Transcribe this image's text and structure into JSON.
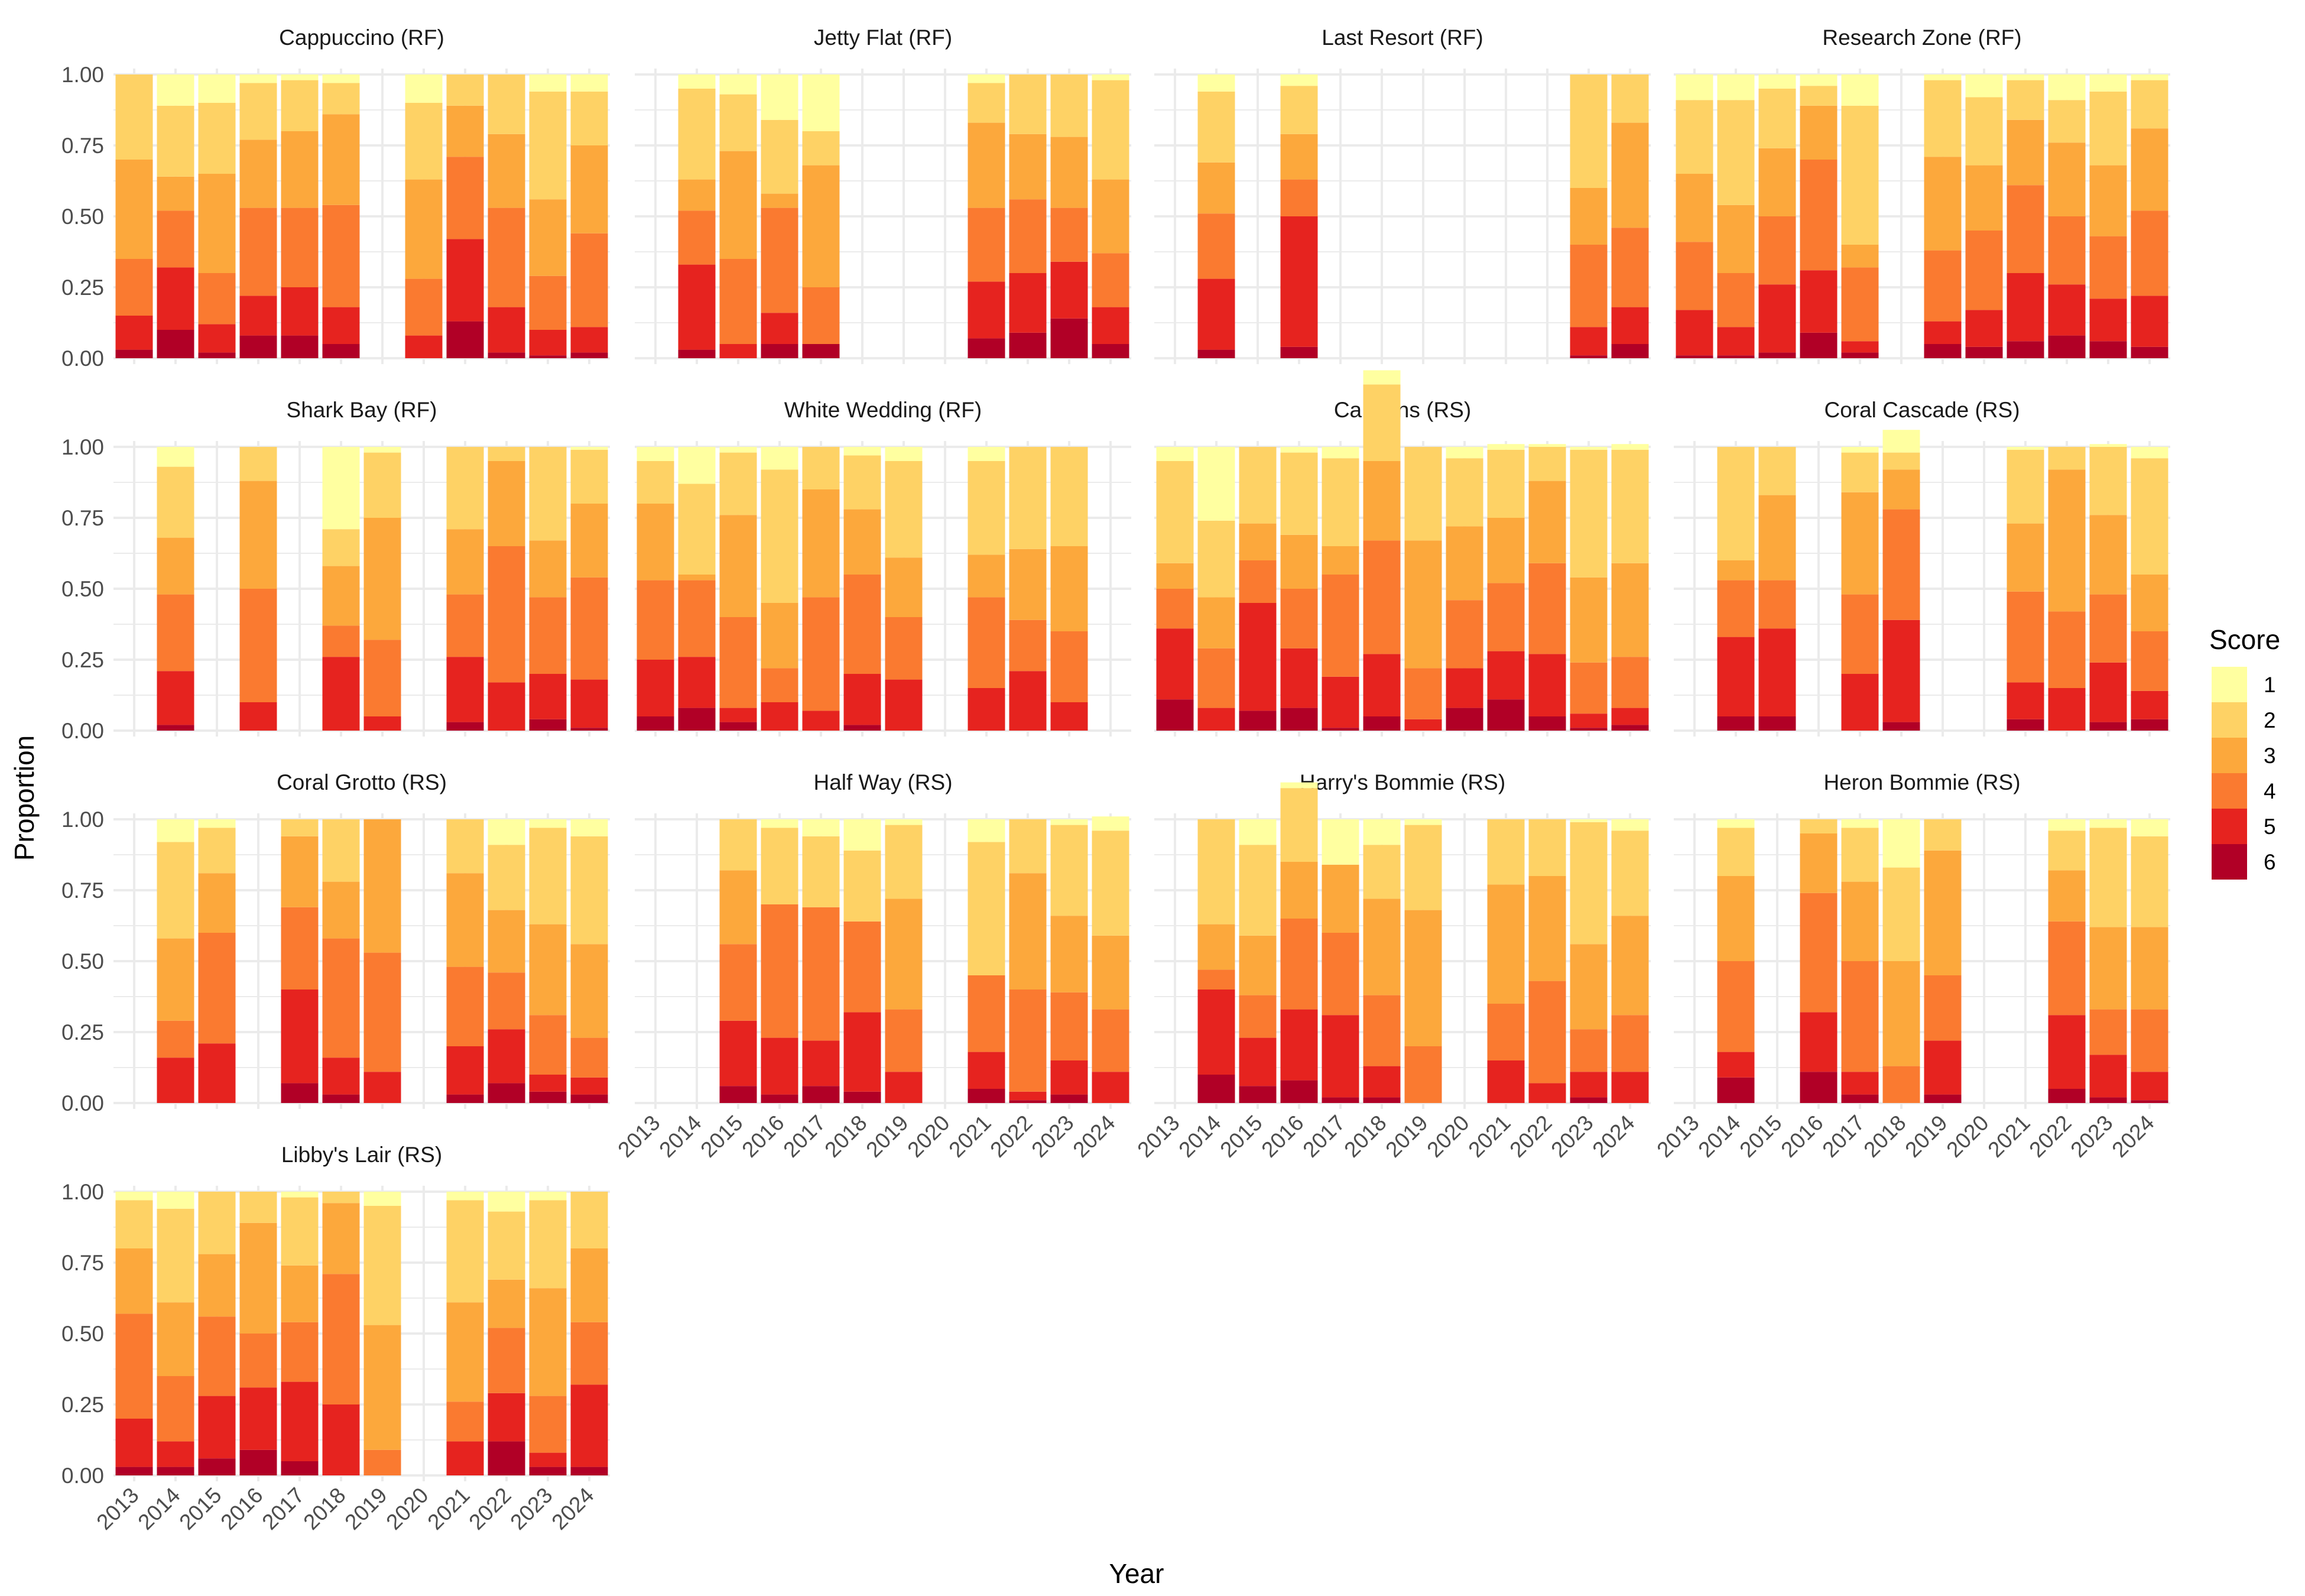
{
  "colors": {
    "1": "#FFFFA0",
    "2": "#FED265",
    "3": "#FCA83C",
    "4": "#FA7A30",
    "5": "#E6231F",
    "6": "#B10026",
    "grid": "#EBEBEB"
  },
  "chart_data": {
    "type": "bar",
    "stacked": true,
    "facet_wrap": true,
    "xlabel": "Year",
    "ylabel": "Proportion",
    "ylim": [
      0,
      1
    ],
    "yticks": [
      "0.00",
      "0.25",
      "0.50",
      "0.75",
      "1.00"
    ],
    "years": [
      "2013",
      "2014",
      "2015",
      "2016",
      "2017",
      "2018",
      "2019",
      "2020",
      "2021",
      "2022",
      "2023",
      "2024"
    ],
    "legend": {
      "title": "Score",
      "position": "right",
      "labels": [
        "1",
        "2",
        "3",
        "4",
        "5",
        "6"
      ]
    },
    "note": "Each bar: proportion of each Score stacked with 6 at the bottom, 1 at the top; null = no bar.",
    "facets": [
      {
        "title": "Cappuccino (RF)",
        "bars": [
          [
            0,
            0.3,
            0.35,
            0.2,
            0.12,
            0.03
          ],
          [
            0.11,
            0.25,
            0.12,
            0.2,
            0.22,
            0.1
          ],
          [
            0.1,
            0.25,
            0.35,
            0.18,
            0.1,
            0.02
          ],
          [
            0.03,
            0.2,
            0.24,
            0.31,
            0.14,
            0.08
          ],
          [
            0.02,
            0.18,
            0.27,
            0.28,
            0.17,
            0.08
          ],
          [
            0.03,
            0.11,
            0.32,
            0.36,
            0.13,
            0.05
          ],
          null,
          [
            0.1,
            0.27,
            0.35,
            0.2,
            0.08,
            0
          ],
          [
            0,
            0.11,
            0.18,
            0.29,
            0.29,
            0.13
          ],
          [
            0,
            0.21,
            0.26,
            0.35,
            0.16,
            0.02
          ],
          [
            0.06,
            0.38,
            0.27,
            0.19,
            0.09,
            0.01
          ],
          [
            0.06,
            0.19,
            0.31,
            0.33,
            0.09,
            0.02
          ]
        ]
      },
      {
        "title": "Jetty Flat (RF)",
        "bars": [
          null,
          [
            0.05,
            0.32,
            0.11,
            0.19,
            0.3,
            0.03
          ],
          [
            0.07,
            0.2,
            0.38,
            0.3,
            0.05,
            0
          ],
          [
            0.16,
            0.26,
            0.05,
            0.37,
            0.11,
            0.05
          ],
          [
            0.2,
            0.12,
            0.43,
            0.2,
            0,
            0.05
          ],
          null,
          null,
          null,
          [
            0.03,
            0.14,
            0.3,
            0.26,
            0.2,
            0.07
          ],
          [
            0,
            0.21,
            0.23,
            0.26,
            0.21,
            0.09
          ],
          [
            0,
            0.22,
            0.25,
            0.19,
            0.2,
            0.14
          ],
          [
            0.02,
            0.35,
            0.26,
            0.19,
            0.13,
            0.05
          ]
        ]
      },
      {
        "title": "Last Resort (RF)",
        "bars": [
          null,
          [
            0.06,
            0.25,
            0.18,
            0.23,
            0.25,
            0.03
          ],
          null,
          [
            0.04,
            0.17,
            0.16,
            0.13,
            0.46,
            0.04
          ],
          null,
          null,
          null,
          null,
          null,
          null,
          [
            0,
            0.4,
            0.2,
            0.29,
            0.1,
            0.01
          ],
          [
            0,
            0.17,
            0.37,
            0.28,
            0.13,
            0.05
          ]
        ]
      },
      {
        "title": "Research Zone (RF)",
        "bars": [
          [
            0.09,
            0.26,
            0.24,
            0.24,
            0.16,
            0.01
          ],
          [
            0.09,
            0.37,
            0.24,
            0.19,
            0.1,
            0.01
          ],
          [
            0.05,
            0.21,
            0.24,
            0.24,
            0.24,
            0.02
          ],
          [
            0.04,
            0.07,
            0.19,
            0.39,
            0.22,
            0.09
          ],
          [
            0.11,
            0.49,
            0.08,
            0.26,
            0.04,
            0.02
          ],
          null,
          [
            0.02,
            0.27,
            0.33,
            0.25,
            0.08,
            0.05
          ],
          [
            0.08,
            0.24,
            0.23,
            0.28,
            0.13,
            0.04
          ],
          [
            0.02,
            0.14,
            0.23,
            0.31,
            0.24,
            0.06
          ],
          [
            0.09,
            0.15,
            0.26,
            0.24,
            0.18,
            0.08
          ],
          [
            0.06,
            0.26,
            0.25,
            0.22,
            0.15,
            0.06
          ],
          [
            0.02,
            0.17,
            0.29,
            0.3,
            0.18,
            0.04
          ]
        ]
      },
      {
        "title": "Shark Bay (RF)",
        "bars": [
          null,
          [
            0.07,
            0.25,
            0.2,
            0.27,
            0.19,
            0.02
          ],
          null,
          [
            0,
            0.12,
            0.38,
            0.4,
            0.1,
            0
          ],
          null,
          [
            0.29,
            0.13,
            0.21,
            0.11,
            0.26,
            0
          ],
          [
            0.02,
            0.23,
            0.43,
            0.27,
            0.05,
            0
          ],
          null,
          [
            0,
            0.29,
            0.23,
            0.22,
            0.23,
            0.03
          ],
          [
            0,
            0.05,
            0.3,
            0.48,
            0.17,
            0
          ],
          [
            0,
            0.33,
            0.2,
            0.27,
            0.16,
            0.04
          ],
          [
            0.01,
            0.19,
            0.26,
            0.36,
            0.17,
            0.01
          ]
        ]
      },
      {
        "title": "White Wedding (RF)",
        "bars": [
          [
            0.05,
            0.15,
            0.27,
            0.28,
            0.2,
            0.05
          ],
          [
            0.13,
            0.32,
            0.02,
            0.27,
            0.18,
            0.08
          ],
          [
            0.02,
            0.22,
            0.36,
            0.32,
            0.05,
            0.03
          ],
          [
            0.08,
            0.47,
            0.23,
            0.12,
            0.1,
            0
          ],
          [
            0,
            0.15,
            0.38,
            0.4,
            0.07,
            0
          ],
          [
            0.03,
            0.19,
            0.23,
            0.35,
            0.18,
            0.02
          ],
          [
            0.05,
            0.34,
            0.21,
            0.22,
            0.18,
            0
          ],
          null,
          [
            0.05,
            0.33,
            0.15,
            0.32,
            0.15,
            0
          ],
          [
            0,
            0.36,
            0.25,
            0.18,
            0.21,
            0
          ],
          [
            0,
            0.35,
            0.3,
            0.25,
            0.1,
            0
          ],
          null
        ]
      },
      {
        "title": "Canyons (RS)",
        "bars": [
          [
            0.05,
            0.36,
            0.09,
            0.14,
            0.25,
            0.11
          ],
          [
            0.26,
            0.27,
            0.18,
            0.21,
            0.08,
            0
          ],
          [
            0,
            0.27,
            0.13,
            0.15,
            0.38,
            0.07
          ],
          [
            0.02,
            0.29,
            0.19,
            0.21,
            0.21,
            0.08
          ],
          [
            0.04,
            0.31,
            0.1,
            0.36,
            0.18,
            0.01
          ],
          [
            0.05,
            0.27,
            0.28,
            0.4,
            0.22,
            0.05
          ],
          [
            0,
            0.33,
            0.45,
            0.18,
            0.04,
            0
          ],
          [
            0.04,
            0.24,
            0.26,
            0.24,
            0.14,
            0.08
          ],
          [
            0.02,
            0.24,
            0.23,
            0.24,
            0.17,
            0.11
          ],
          [
            0.01,
            0.12,
            0.29,
            0.32,
            0.22,
            0.05
          ],
          [
            0.01,
            0.45,
            0.3,
            0.18,
            0.05,
            0.01
          ],
          [
            0.02,
            0.4,
            0.33,
            0.18,
            0.06,
            0.02
          ]
        ]
      },
      {
        "title": "Coral Cascade (RS)",
        "bars": [
          null,
          [
            0,
            0.4,
            0.07,
            0.2,
            0.28,
            0.05
          ],
          [
            0,
            0.17,
            0.3,
            0.17,
            0.31,
            0.05
          ],
          null,
          [
            0.02,
            0.14,
            0.36,
            0.28,
            0.2,
            0
          ],
          [
            0.08,
            0.06,
            0.14,
            0.39,
            0.36,
            0.03
          ],
          null,
          null,
          [
            0.01,
            0.26,
            0.24,
            0.32,
            0.13,
            0.04
          ],
          [
            0,
            0.08,
            0.5,
            0.27,
            0.15,
            0
          ],
          [
            0.01,
            0.24,
            0.28,
            0.24,
            0.21,
            0.03
          ],
          [
            0.04,
            0.41,
            0.2,
            0.21,
            0.1,
            0.04
          ]
        ]
      },
      {
        "title": "Coral Grotto (RS)",
        "bars": [
          null,
          [
            0.08,
            0.34,
            0.29,
            0.13,
            0.16,
            0
          ],
          [
            0.03,
            0.16,
            0.21,
            0.39,
            0.21,
            0
          ],
          null,
          [
            0,
            0.06,
            0.25,
            0.29,
            0.33,
            0.07
          ],
          [
            0,
            0.22,
            0.2,
            0.42,
            0.13,
            0.03
          ],
          [
            0,
            0,
            0.47,
            0.42,
            0.11,
            0
          ],
          null,
          [
            0,
            0.19,
            0.33,
            0.28,
            0.17,
            0.03
          ],
          [
            0.09,
            0.23,
            0.22,
            0.2,
            0.19,
            0.07
          ],
          [
            0.03,
            0.34,
            0.32,
            0.21,
            0.06,
            0.04
          ],
          [
            0.06,
            0.38,
            0.33,
            0.14,
            0.06,
            0.03
          ]
        ]
      },
      {
        "title": "Half Way (RS)",
        "bars": [
          null,
          null,
          [
            0,
            0.18,
            0.26,
            0.27,
            0.23,
            0.06
          ],
          [
            0.03,
            0.27,
            0.0,
            0.47,
            0.2,
            0.03
          ],
          [
            0.06,
            0.25,
            0.0,
            0.47,
            0.16,
            0.06
          ],
          [
            0.11,
            0.25,
            0.0,
            0.32,
            0.28,
            0.04
          ],
          [
            0.02,
            0.26,
            0.39,
            0.22,
            0.11,
            0
          ],
          null,
          [
            0.08,
            0.47,
            0.0,
            0.27,
            0.13,
            0.05
          ],
          [
            0,
            0.19,
            0.41,
            0.36,
            0.03,
            0.01
          ],
          [
            0.02,
            0.32,
            0.27,
            0.24,
            0.12,
            0.03
          ],
          [
            0.05,
            0.37,
            0.26,
            0.22,
            0.11,
            0
          ]
        ]
      },
      {
        "title": "Harry's Bommie (RS)",
        "bars": [
          null,
          [
            0,
            0.37,
            0.16,
            0.07,
            0.3,
            0.1
          ],
          [
            0.09,
            0.32,
            0.21,
            0.15,
            0.17,
            0.06
          ],
          [
            0.02,
            0.26,
            0.2,
            0.32,
            0.25,
            0.08
          ],
          [
            0.16,
            0.0,
            0.24,
            0.29,
            0.29,
            0.02
          ],
          [
            0.09,
            0.19,
            0.34,
            0.25,
            0.11,
            0.02
          ],
          [
            0.02,
            0.3,
            0.48,
            0.2,
            0,
            0
          ],
          null,
          [
            0,
            0.23,
            0.42,
            0.2,
            0.15,
            0
          ],
          [
            0,
            0.2,
            0.37,
            0.36,
            0.07,
            0
          ],
          [
            0.01,
            0.43,
            0.3,
            0.15,
            0.09,
            0.02
          ],
          [
            0.04,
            0.3,
            0.35,
            0.2,
            0.11,
            0
          ]
        ]
      },
      {
        "title": "Heron Bommie (RS)",
        "bars": [
          null,
          [
            0.03,
            0.17,
            0.3,
            0.32,
            0.09,
            0.09
          ],
          null,
          [
            0,
            0.05,
            0.21,
            0.42,
            0.21,
            0.11
          ],
          [
            0.03,
            0.19,
            0.28,
            0.39,
            0.08,
            0.03
          ],
          [
            0.17,
            0.33,
            0.37,
            0.13,
            0,
            0
          ],
          [
            0,
            0.11,
            0.44,
            0.23,
            0.19,
            0.03
          ],
          null,
          null,
          [
            0.04,
            0.14,
            0.18,
            0.33,
            0.26,
            0.05
          ],
          [
            0.03,
            0.35,
            0.29,
            0.16,
            0.15,
            0.02
          ],
          [
            0.06,
            0.32,
            0.29,
            0.22,
            0.1,
            0.01
          ]
        ]
      },
      {
        "title": "Libby's Lair (RS)",
        "bars": [
          [
            0.03,
            0.17,
            0.23,
            0.37,
            0.17,
            0.03
          ],
          [
            0.06,
            0.33,
            0.26,
            0.23,
            0.09,
            0.03
          ],
          [
            0,
            0.22,
            0.22,
            0.28,
            0.22,
            0.06
          ],
          [
            0,
            0.11,
            0.39,
            0.19,
            0.22,
            0.09
          ],
          [
            0.02,
            0.24,
            0.2,
            0.21,
            0.28,
            0.05
          ],
          [
            0,
            0.04,
            0.25,
            0.46,
            0.25,
            0
          ],
          [
            0.05,
            0.42,
            0.44,
            0.09,
            0,
            0
          ],
          null,
          [
            0.03,
            0.36,
            0.35,
            0.14,
            0.12,
            0
          ],
          [
            0.07,
            0.24,
            0.17,
            0.23,
            0.17,
            0.12
          ],
          [
            0.03,
            0.31,
            0.38,
            0.2,
            0.05,
            0.03
          ],
          [
            0,
            0.2,
            0.26,
            0.22,
            0.29,
            0.03
          ]
        ]
      }
    ]
  }
}
